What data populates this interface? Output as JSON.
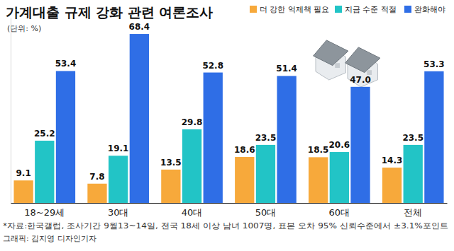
{
  "chart_data": {
    "type": "bar",
    "title": "가계대출 규제 강화 관련 여론조사",
    "subtitle": "(단위: %)",
    "categories": [
      "18~29세",
      "30대",
      "40대",
      "50대",
      "60대",
      "전체"
    ],
    "series": [
      {
        "name": "더 강한 억제책 필요",
        "color": "#f7a93b",
        "values": [
          9.1,
          7.8,
          13.5,
          18.6,
          18.5,
          14.3
        ],
        "value_labels": [
          "9.1",
          "7.8",
          "13.5",
          "18.6",
          "18.5",
          "14.3"
        ]
      },
      {
        "name": "지금 수준 적절",
        "color": "#22c4c6",
        "values": [
          25.2,
          19.1,
          29.8,
          23.5,
          20.6,
          23.5
        ],
        "value_labels": [
          "25.2",
          "19.1",
          "29.8",
          "23.5",
          "20.6",
          "23.5"
        ]
      },
      {
        "name": "완화해야",
        "color": "#2f6ee6",
        "values": [
          53.4,
          68.4,
          52.8,
          51.4,
          47.0,
          53.3
        ],
        "value_labels": [
          "53.4",
          "68.4",
          "52.8",
          "51.4",
          "47.0",
          "53.3"
        ]
      }
    ],
    "ylim": [
      0,
      75
    ],
    "yticks": [],
    "grid": false,
    "legend": "top-right",
    "data_labels": true,
    "tick_labels": "x",
    "annotations": [
      "*자료:한국갤럽, 조사기간 9월13~14일, 전국 18세 이상 남녀 1007명, 표본 오차 95% 신뢰수준에서 ±3.1%포인트",
      "그래픽: 김지영 디자인기자"
    ]
  }
}
